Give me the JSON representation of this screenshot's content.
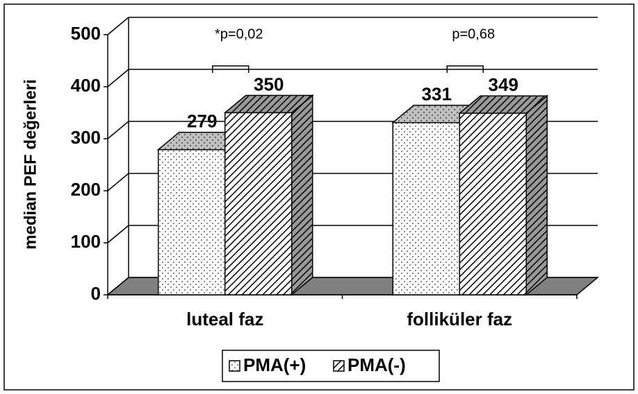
{
  "chart_data": {
    "type": "bar3d",
    "y_label": "median PEF değerleri",
    "categories": [
      "luteal faz",
      "folliküler faz"
    ],
    "series": [
      {
        "name": "PMA(+)",
        "pattern": "dots",
        "values": [
          279,
          331
        ]
      },
      {
        "name": "PMA(-)",
        "pattern": "hatch",
        "values": [
          350,
          349
        ]
      }
    ],
    "annotations": [
      "*p=0,02",
      "p=0,68"
    ],
    "ylim": [
      0,
      500
    ],
    "yticks": [
      0,
      100,
      200,
      300,
      400,
      500
    ],
    "grid": true
  }
}
